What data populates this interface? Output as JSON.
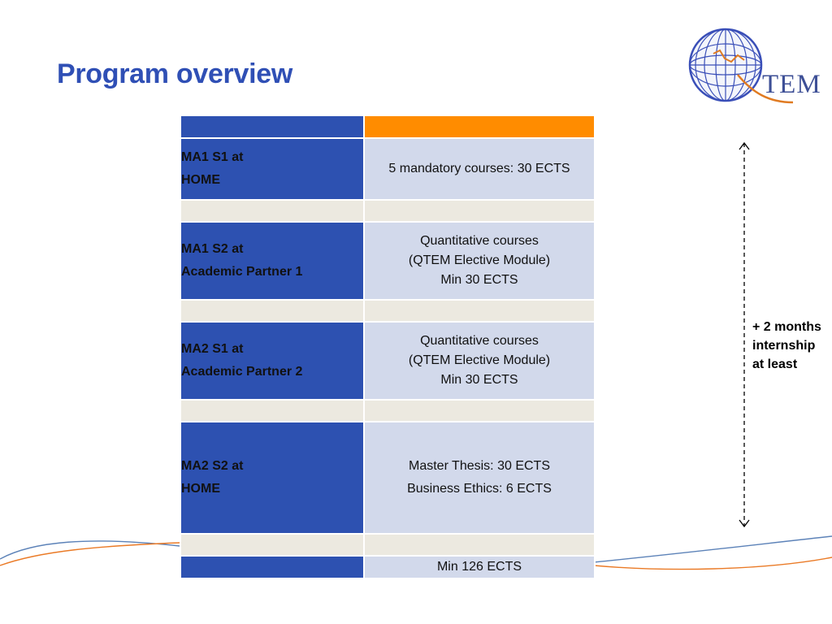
{
  "slide": {
    "title": "Program overview"
  },
  "logo": {
    "text": "TEM",
    "globe_color": "#3a4fb8",
    "accent_color": "#e07b22"
  },
  "table": {
    "rows": [
      {
        "kind": "header"
      },
      {
        "kind": "semester",
        "left": [
          "MA1 S1 at",
          "HOME"
        ],
        "right": [
          "5 mandatory courses: 30 ECTS"
        ]
      },
      {
        "kind": "spacer"
      },
      {
        "kind": "semester",
        "left": [
          "MA1 S2 at",
          "Academic Partner 1"
        ],
        "right": [
          "Quantitative courses",
          "(QTEM Elective Module)",
          "Min 30 ECTS"
        ]
      },
      {
        "kind": "spacer"
      },
      {
        "kind": "semester",
        "left": [
          "MA2 S1 at",
          "Academic Partner 2"
        ],
        "right": [
          "Quantitative courses",
          "(QTEM Elective Module)",
          "Min 30 ECTS"
        ]
      },
      {
        "kind": "spacer"
      },
      {
        "kind": "semester",
        "left": [
          "MA2 S2 at",
          "HOME"
        ],
        "right": [
          "Master Thesis: 30 ECTS",
          "Business Ethics: 6 ECTS"
        ]
      },
      {
        "kind": "spacer"
      },
      {
        "kind": "total",
        "right": [
          "Min 126 ECTS"
        ]
      }
    ],
    "colors": {
      "left_blue": "#2d51b1",
      "right_lavender": "#d2d9eb",
      "header_orange": "#ff8c00",
      "spacer_beige": "#ece9e0"
    }
  },
  "internship": {
    "lines": [
      "+ 2 months",
      "internship",
      "at least"
    ]
  }
}
